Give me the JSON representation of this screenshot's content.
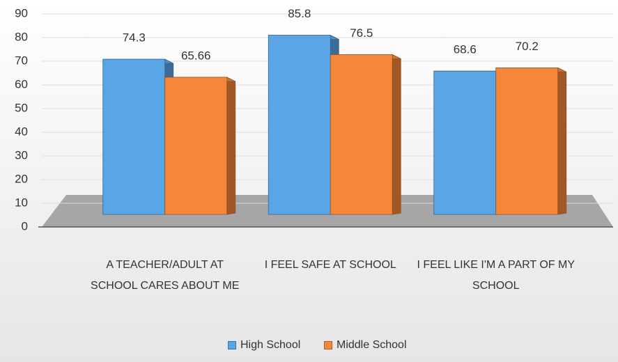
{
  "chart_data": {
    "type": "bar3d",
    "categories": [
      "A TEACHER/ADULT AT SCHOOL CARES ABOUT ME",
      "I FEEL SAFE AT SCHOOL",
      "I FEEL LIKE I'M A PART OF MY SCHOOL"
    ],
    "series": [
      {
        "name": "High School",
        "color": "#5aa5e6",
        "values": [
          74.3,
          85.8,
          68.6
        ]
      },
      {
        "name": "Middle School",
        "color": "#f4873a",
        "values": [
          65.66,
          76.5,
          70.2
        ]
      }
    ],
    "ylim": [
      0,
      90
    ],
    "yticks": [
      0,
      10,
      20,
      30,
      40,
      50,
      60,
      70,
      80,
      90
    ],
    "grid": true,
    "legend": "bottom"
  }
}
